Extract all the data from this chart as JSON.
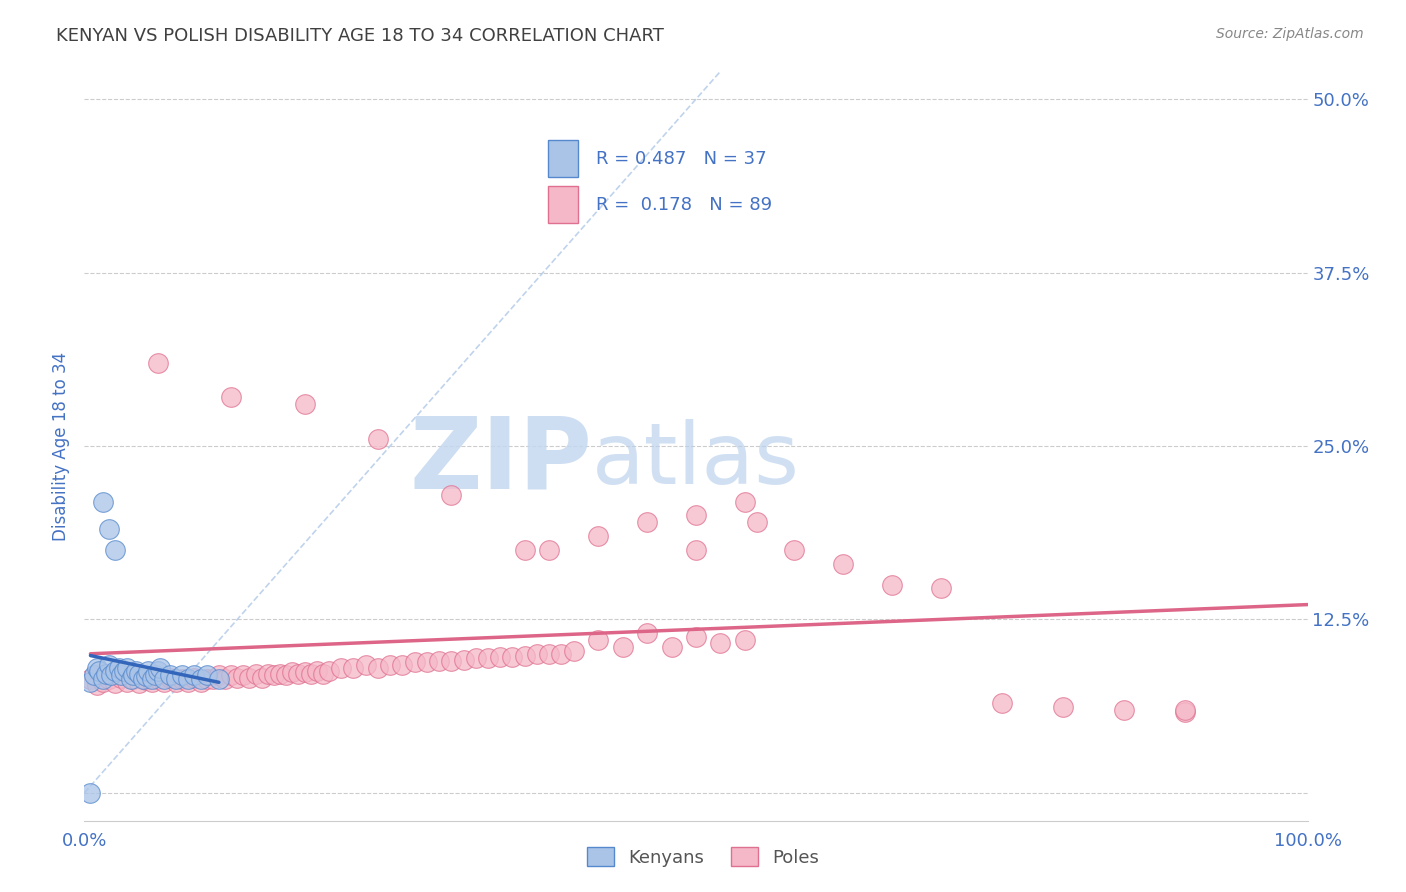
{
  "title": "KENYAN VS POLISH DISABILITY AGE 18 TO 34 CORRELATION CHART",
  "source": "Source: ZipAtlas.com",
  "ylabel": "Disability Age 18 to 34",
  "kenyan_R": 0.487,
  "kenyan_N": 37,
  "polish_R": 0.178,
  "polish_N": 89,
  "kenyan_color": "#aac4e8",
  "kenyan_edge_color": "#5588cc",
  "kenyan_line_color": "#3366bb",
  "polish_color": "#f5b8c8",
  "polish_edge_color": "#e07090",
  "polish_line_color": "#dd6688",
  "watermark_zip": "ZIP",
  "watermark_atlas": "atlas",
  "background_color": "#ffffff",
  "grid_color": "#cccccc",
  "title_color": "#404040",
  "axis_label_color": "#4472c4",
  "tick_label_color": "#4472c4",
  "kenyan_scatter_x": [
    0.005,
    0.008,
    0.01,
    0.012,
    0.015,
    0.018,
    0.02,
    0.022,
    0.025,
    0.028,
    0.03,
    0.032,
    0.035,
    0.038,
    0.04,
    0.042,
    0.045,
    0.048,
    0.05,
    0.052,
    0.055,
    0.058,
    0.06,
    0.062,
    0.065,
    0.07,
    0.075,
    0.08,
    0.085,
    0.09,
    0.095,
    0.1,
    0.11,
    0.015,
    0.02,
    0.025,
    0.005
  ],
  "kenyan_scatter_y": [
    0.08,
    0.085,
    0.09,
    0.088,
    0.082,
    0.086,
    0.092,
    0.085,
    0.088,
    0.09,
    0.085,
    0.088,
    0.09,
    0.082,
    0.085,
    0.088,
    0.086,
    0.082,
    0.084,
    0.088,
    0.082,
    0.085,
    0.088,
    0.09,
    0.082,
    0.085,
    0.082,
    0.085,
    0.082,
    0.085,
    0.082,
    0.085,
    0.082,
    0.21,
    0.19,
    0.175,
    0.0
  ],
  "polish_scatter_x": [
    0.005,
    0.01,
    0.015,
    0.02,
    0.025,
    0.03,
    0.035,
    0.04,
    0.045,
    0.05,
    0.055,
    0.06,
    0.065,
    0.07,
    0.075,
    0.08,
    0.085,
    0.09,
    0.095,
    0.1,
    0.105,
    0.11,
    0.115,
    0.12,
    0.125,
    0.13,
    0.135,
    0.14,
    0.145,
    0.15,
    0.155,
    0.16,
    0.165,
    0.17,
    0.175,
    0.18,
    0.185,
    0.19,
    0.195,
    0.2,
    0.21,
    0.22,
    0.23,
    0.24,
    0.25,
    0.26,
    0.27,
    0.28,
    0.29,
    0.3,
    0.31,
    0.32,
    0.33,
    0.34,
    0.35,
    0.36,
    0.37,
    0.38,
    0.39,
    0.4,
    0.42,
    0.44,
    0.46,
    0.48,
    0.5,
    0.52,
    0.54,
    0.38,
    0.42,
    0.46,
    0.5,
    0.54,
    0.58,
    0.62,
    0.66,
    0.7,
    0.75,
    0.8,
    0.85,
    0.9,
    0.06,
    0.12,
    0.18,
    0.24,
    0.3,
    0.36,
    0.5,
    0.55,
    0.9
  ],
  "polish_scatter_y": [
    0.082,
    0.078,
    0.08,
    0.082,
    0.079,
    0.083,
    0.08,
    0.082,
    0.079,
    0.081,
    0.08,
    0.082,
    0.08,
    0.083,
    0.08,
    0.082,
    0.08,
    0.083,
    0.08,
    0.082,
    0.082,
    0.085,
    0.082,
    0.085,
    0.083,
    0.085,
    0.083,
    0.086,
    0.083,
    0.086,
    0.085,
    0.086,
    0.085,
    0.087,
    0.086,
    0.087,
    0.086,
    0.088,
    0.086,
    0.088,
    0.09,
    0.09,
    0.092,
    0.09,
    0.092,
    0.092,
    0.094,
    0.094,
    0.095,
    0.095,
    0.096,
    0.097,
    0.097,
    0.098,
    0.098,
    0.099,
    0.1,
    0.1,
    0.1,
    0.102,
    0.11,
    0.105,
    0.115,
    0.105,
    0.112,
    0.108,
    0.11,
    0.175,
    0.185,
    0.195,
    0.2,
    0.21,
    0.175,
    0.165,
    0.15,
    0.148,
    0.065,
    0.062,
    0.06,
    0.058,
    0.31,
    0.285,
    0.28,
    0.255,
    0.215,
    0.175,
    0.175,
    0.195,
    0.06
  ]
}
